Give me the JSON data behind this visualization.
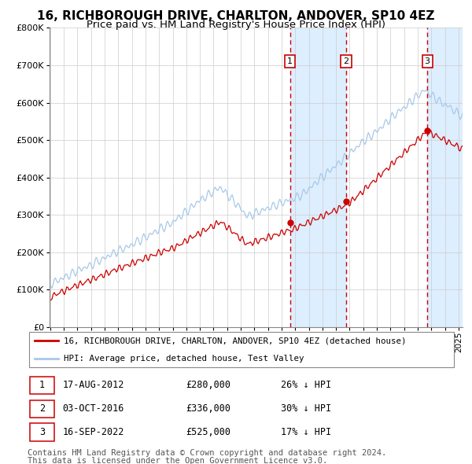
{
  "title": "16, RICHBOROUGH DRIVE, CHARLTON, ANDOVER, SP10 4EZ",
  "subtitle": "Price paid vs. HM Land Registry's House Price Index (HPI)",
  "legend_line1": "16, RICHBOROUGH DRIVE, CHARLTON, ANDOVER, SP10 4EZ (detached house)",
  "legend_line2": "HPI: Average price, detached house, Test Valley",
  "footer1": "Contains HM Land Registry data © Crown copyright and database right 2024.",
  "footer2": "This data is licensed under the Open Government Licence v3.0.",
  "sales": [
    {
      "num": 1,
      "date": "17-AUG-2012",
      "price": 280000,
      "pct": "26%",
      "dir": "↓"
    },
    {
      "num": 2,
      "date": "03-OCT-2016",
      "price": 336000,
      "pct": "30%",
      "dir": "↓"
    },
    {
      "num": 3,
      "date": "16-SEP-2022",
      "price": 525000,
      "pct": "17%",
      "dir": "↓"
    }
  ],
  "sale_dates_decimal": [
    2012.625,
    2016.75,
    2022.708
  ],
  "ylim": [
    0,
    800000
  ],
  "xlim_start": 1994.95,
  "xlim_end": 2025.3,
  "hpi_color": "#a8c8e8",
  "price_color": "#cc0000",
  "shading_color": "#ddeeff",
  "grid_color": "#cccccc",
  "title_fontsize": 11,
  "subtitle_fontsize": 9.5,
  "footer_fontsize": 7.5
}
